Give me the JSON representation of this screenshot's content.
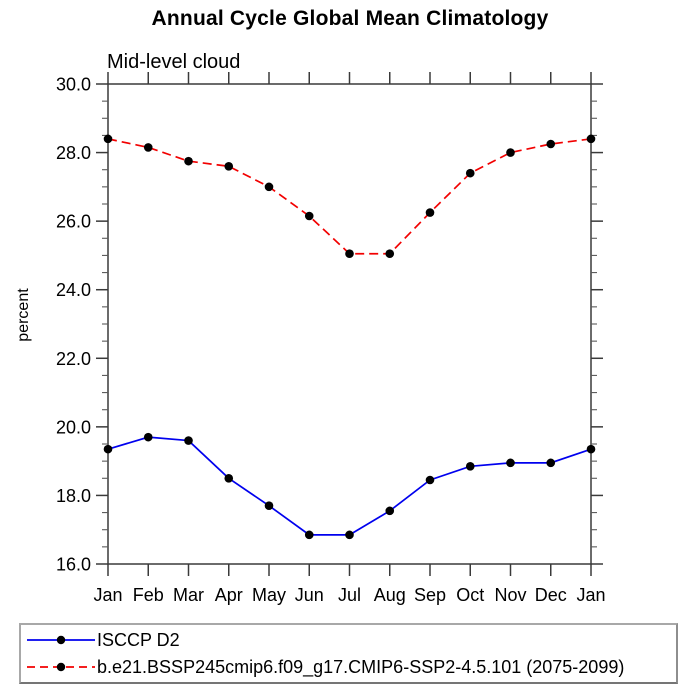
{
  "chart_data": {
    "type": "line",
    "title": "Annual Cycle Global Mean Climatology",
    "subtitle": "Mid-level cloud",
    "ylabel": "percent",
    "x_categories": [
      "Jan",
      "Feb",
      "Mar",
      "Apr",
      "May",
      "Jun",
      "Jul",
      "Aug",
      "Sep",
      "Oct",
      "Nov",
      "Dec",
      "Jan"
    ],
    "ylim": [
      16.0,
      30.0
    ],
    "ytick_values": [
      30,
      28,
      26,
      24,
      22,
      20,
      18,
      16
    ],
    "ytick_labels": [
      "30.0",
      "28.0",
      "26.0",
      "24.0",
      "22.0",
      "20.0",
      "18.0",
      "16.0"
    ],
    "y_minor_step": 0.5,
    "grid": false,
    "legend_position": "bottom-left-box",
    "axis_color": "#3a3a3a",
    "marker": "filled-circle",
    "marker_color": "#000000",
    "series": [
      {
        "name": "ISCCP D2",
        "color": "#0000ee",
        "line_style": "solid",
        "values": [
          19.35,
          19.7,
          19.6,
          18.5,
          17.7,
          16.85,
          16.85,
          17.55,
          18.45,
          18.85,
          18.95,
          18.95,
          19.35
        ]
      },
      {
        "name": "b.e21.BSSP245cmip6.f09_g17.CMIP6-SSP2-4.5.101 (2075-2099)",
        "color": "#f20000",
        "line_style": "dashed",
        "values": [
          28.4,
          28.15,
          27.75,
          27.6,
          27.0,
          26.15,
          25.05,
          25.05,
          26.25,
          27.4,
          28.0,
          28.25,
          28.4
        ]
      }
    ]
  }
}
